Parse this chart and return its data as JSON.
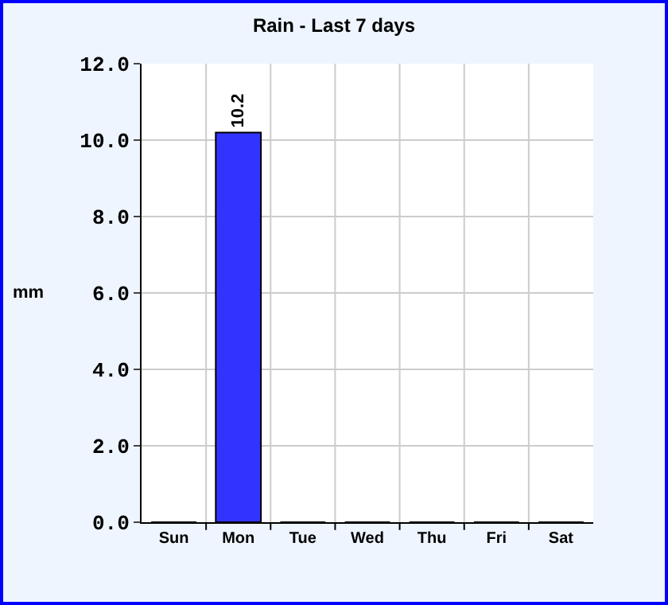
{
  "chart_data": {
    "type": "bar",
    "title": "Rain - Last 7 days",
    "ylabel": "mm",
    "categories": [
      "Sun",
      "Mon",
      "Tue",
      "Wed",
      "Thu",
      "Fri",
      "Sat"
    ],
    "values": [
      0,
      10.2,
      0,
      0,
      0,
      0,
      0
    ],
    "value_labels": [
      null,
      "10.2",
      null,
      null,
      null,
      null,
      null
    ],
    "color": "#3333ff",
    "ylim": [
      0,
      12
    ],
    "yticks": [
      {
        "value": 0,
        "label": "0.0"
      },
      {
        "value": 2,
        "label": "2.0"
      },
      {
        "value": 4,
        "label": "4.0"
      },
      {
        "value": 6,
        "label": "6.0"
      },
      {
        "value": 8,
        "label": "8.0"
      },
      {
        "value": 10,
        "label": "10.0"
      },
      {
        "value": 12,
        "label": "12.0"
      }
    ],
    "grid": true,
    "legend": false
  }
}
